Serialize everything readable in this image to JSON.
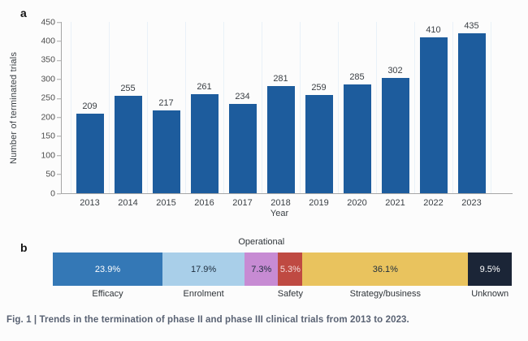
{
  "caption": "Fig. 1 | Trends in the termination of phase II and phase III clinical trials from 2013 to 2023.",
  "panel_a": {
    "label": "a",
    "chart_data": {
      "type": "bar",
      "title": "",
      "xlabel": "Year",
      "ylabel": "Number of terminated trials",
      "categories": [
        "2013",
        "2014",
        "2015",
        "2016",
        "2017",
        "2018",
        "2019",
        "2020",
        "2021",
        "2022",
        "2023"
      ],
      "values": [
        209,
        255,
        217,
        261,
        234,
        281,
        259,
        285,
        302,
        410,
        435
      ],
      "ylim": [
        0,
        450
      ],
      "ytick_step": 50,
      "bar_color": "#1d5c9d",
      "grid": "faint vertical gridlines",
      "legend": "none"
    }
  },
  "panel_b": {
    "label": "b",
    "top_label": "Operational",
    "chart_data": {
      "type": "stacked-bar",
      "segments": [
        {
          "label": "Efficacy",
          "value_pct": 23.9,
          "display": "23.9%",
          "color": "#3478b6",
          "text_color": "#ffffff",
          "label_position": "bottom"
        },
        {
          "label": "Enrolment",
          "value_pct": 17.9,
          "display": "17.9%",
          "color": "#a9cfe9",
          "text_color": "#1d2d3e",
          "label_position": "bottom"
        },
        {
          "label": "Operational",
          "value_pct": 7.3,
          "display": "7.3%",
          "color": "#c78bd3",
          "text_color": "#1d2d3e",
          "label_position": "top"
        },
        {
          "label": "Safety",
          "value_pct": 5.3,
          "display": "5.3%",
          "color": "#bf4a42",
          "text_color": "#f5dcda",
          "label_position": "bottom"
        },
        {
          "label": "Strategy/business",
          "value_pct": 36.1,
          "display": "36.1%",
          "color": "#e9c35e",
          "text_color": "#1d2d3e",
          "label_position": "bottom"
        },
        {
          "label": "Unknown",
          "value_pct": 9.5,
          "display": "9.5%",
          "color": "#1b2537",
          "text_color": "#ffffff",
          "label_position": "bottom"
        }
      ]
    }
  }
}
